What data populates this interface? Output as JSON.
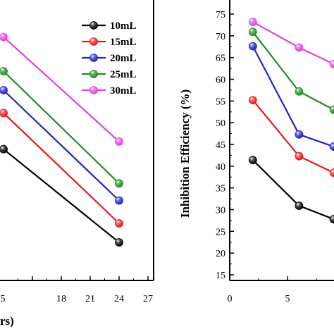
{
  "chart_data": [
    {
      "type": "line",
      "x_unit_fragment": "rs)",
      "xlim": [
        12,
        27
      ],
      "ylim": [
        0,
        100
      ],
      "x_ticks": [
        "5",
        "18",
        "21",
        "24",
        "27"
      ],
      "legend": {
        "placement": "top-right"
      },
      "series": [
        {
          "name": "10mL",
          "color": "#000000",
          "x": [
            12,
            24
          ],
          "y": [
            69,
            20
          ]
        },
        {
          "name": "15mL",
          "color": "#e8191c",
          "x": [
            12,
            24
          ],
          "y": [
            88,
            30
          ]
        },
        {
          "name": "20mL",
          "color": "#1f24c8",
          "x": [
            12,
            24
          ],
          "y": [
            100,
            42
          ]
        },
        {
          "name": "25mL",
          "color": "#228b22",
          "x": [
            12,
            24
          ],
          "y": [
            110,
            51
          ]
        },
        {
          "name": "30mL",
          "color": "#e043e0",
          "x": [
            12,
            24
          ],
          "y": [
            128,
            73
          ]
        }
      ]
    },
    {
      "type": "line",
      "ylabel": "Inhibition Efficiency (%)",
      "xlim": [
        0,
        9
      ],
      "ylim": [
        15,
        75
      ],
      "x_ticks": [
        "0",
        "5"
      ],
      "y_ticks": [
        "15",
        "20",
        "25",
        "30",
        "35",
        "40",
        "45",
        "50",
        "55",
        "60",
        "65",
        "70",
        "75"
      ],
      "series": [
        {
          "name": "10mL",
          "color": "#000000",
          "x": [
            2,
            6,
            9
          ],
          "y": [
            41.4,
            30.9,
            27.8
          ]
        },
        {
          "name": "15mL",
          "color": "#e8191c",
          "x": [
            2,
            6,
            9
          ],
          "y": [
            55.2,
            42.3,
            38.5
          ]
        },
        {
          "name": "20mL",
          "color": "#1f24c8",
          "x": [
            2,
            6,
            9
          ],
          "y": [
            67.6,
            47.3,
            44.5
          ]
        },
        {
          "name": "25mL",
          "color": "#228b22",
          "x": [
            2,
            6,
            9
          ],
          "y": [
            70.9,
            57.2,
            53.0
          ]
        },
        {
          "name": "30mL",
          "color": "#e043e0",
          "x": [
            2,
            6,
            9
          ],
          "y": [
            73.2,
            67.3,
            63.5
          ]
        }
      ]
    }
  ]
}
